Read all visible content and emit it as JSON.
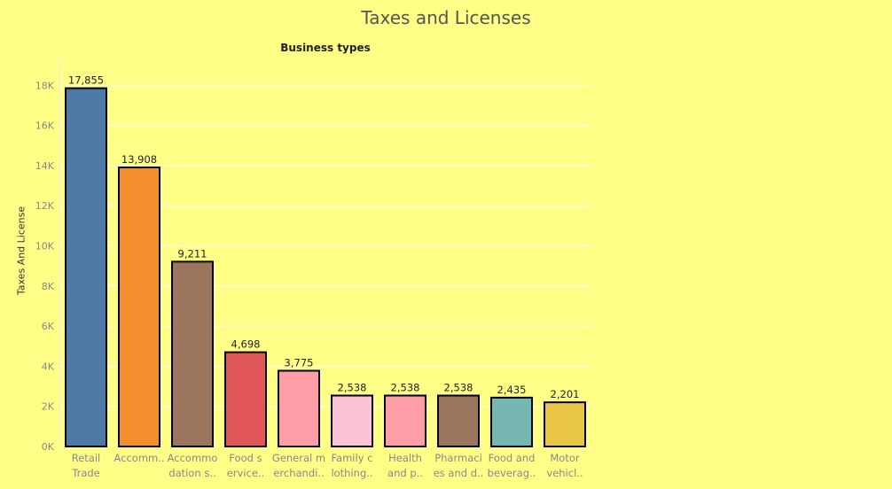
{
  "chart_data": {
    "type": "bar",
    "title": "Taxes and Licenses",
    "subtitle": "Business types",
    "xlabel": "",
    "ylabel": "Taxes And License",
    "ylim": [
      0,
      19000
    ],
    "yticks": [
      "0K",
      "2K",
      "4K",
      "6K",
      "8K",
      "10K",
      "12K",
      "14K",
      "16K",
      "18K"
    ],
    "ytick_values": [
      0,
      2000,
      4000,
      6000,
      8000,
      10000,
      12000,
      14000,
      16000,
      18000
    ],
    "grid": true,
    "categories": [
      [
        "Retail",
        "Trade"
      ],
      [
        "Accomm..",
        ""
      ],
      [
        "Accommo",
        "dation s.."
      ],
      [
        "Food s",
        "ervice.."
      ],
      [
        "General m",
        "erchandi.."
      ],
      [
        "Family c",
        "lothing.."
      ],
      [
        "Health",
        "and p.."
      ],
      [
        "Pharmaci",
        "es and d.."
      ],
      [
        "Food and",
        "beverag.."
      ],
      [
        "Motor",
        "vehicl.."
      ]
    ],
    "values": [
      17855,
      13908,
      9211,
      4698,
      3775,
      2538,
      2538,
      2538,
      2435,
      2201
    ],
    "value_labels": [
      "17,855",
      "13,908",
      "9,211",
      "4,698",
      "3,775",
      "2,538",
      "2,538",
      "2,538",
      "2,435",
      "2,201"
    ],
    "colors": [
      "#4e79a7",
      "#f28e2b",
      "#9c755f",
      "#e15759",
      "#ff9da7",
      "#fbc3d5",
      "#ff9da7",
      "#9c755f",
      "#76b7b2",
      "#e9c546"
    ]
  }
}
